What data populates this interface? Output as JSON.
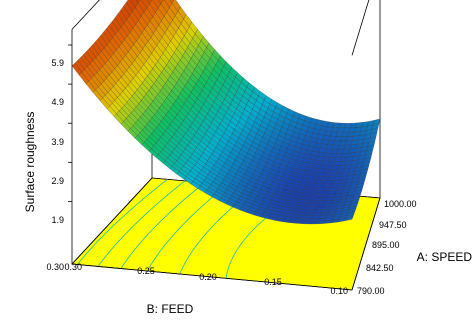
{
  "chart_data": {
    "type": "surface",
    "z_label": "Surface roughness",
    "x_label": "B: FEED",
    "y_label": "A: SPEED",
    "z_ticks": [
      "1.9",
      "2.9",
      "3.9",
      "4.9",
      "5.9"
    ],
    "z_axis_bottom_label": "0.30",
    "z_range": [
      0.9,
      5.9
    ],
    "feed_ticks": [
      "0.30",
      "0.25",
      "0.20",
      "0.15",
      "0.10"
    ],
    "speed_ticks": [
      "790.00",
      "842.50",
      "895.00",
      "947.50",
      "1000.00"
    ],
    "feed_range": [
      0.1,
      0.3
    ],
    "speed_range": [
      790,
      1000
    ],
    "surface_corners": {
      "feed_0.30_speed_790": 5.35,
      "feed_0.30_speed_1000": 5.85,
      "feed_0.10_speed_790": 2.55,
      "feed_0.10_speed_1000": 3.25
    },
    "surface_minimum": {
      "feed": 0.14,
      "speed": 860,
      "roughness": 1.8
    },
    "grid": false,
    "colormap": [
      "#1a3fb0",
      "#00b0d0",
      "#10c060",
      "#e0d000",
      "#e06000",
      "#c02000"
    ],
    "floor_color": "#ffff00"
  }
}
